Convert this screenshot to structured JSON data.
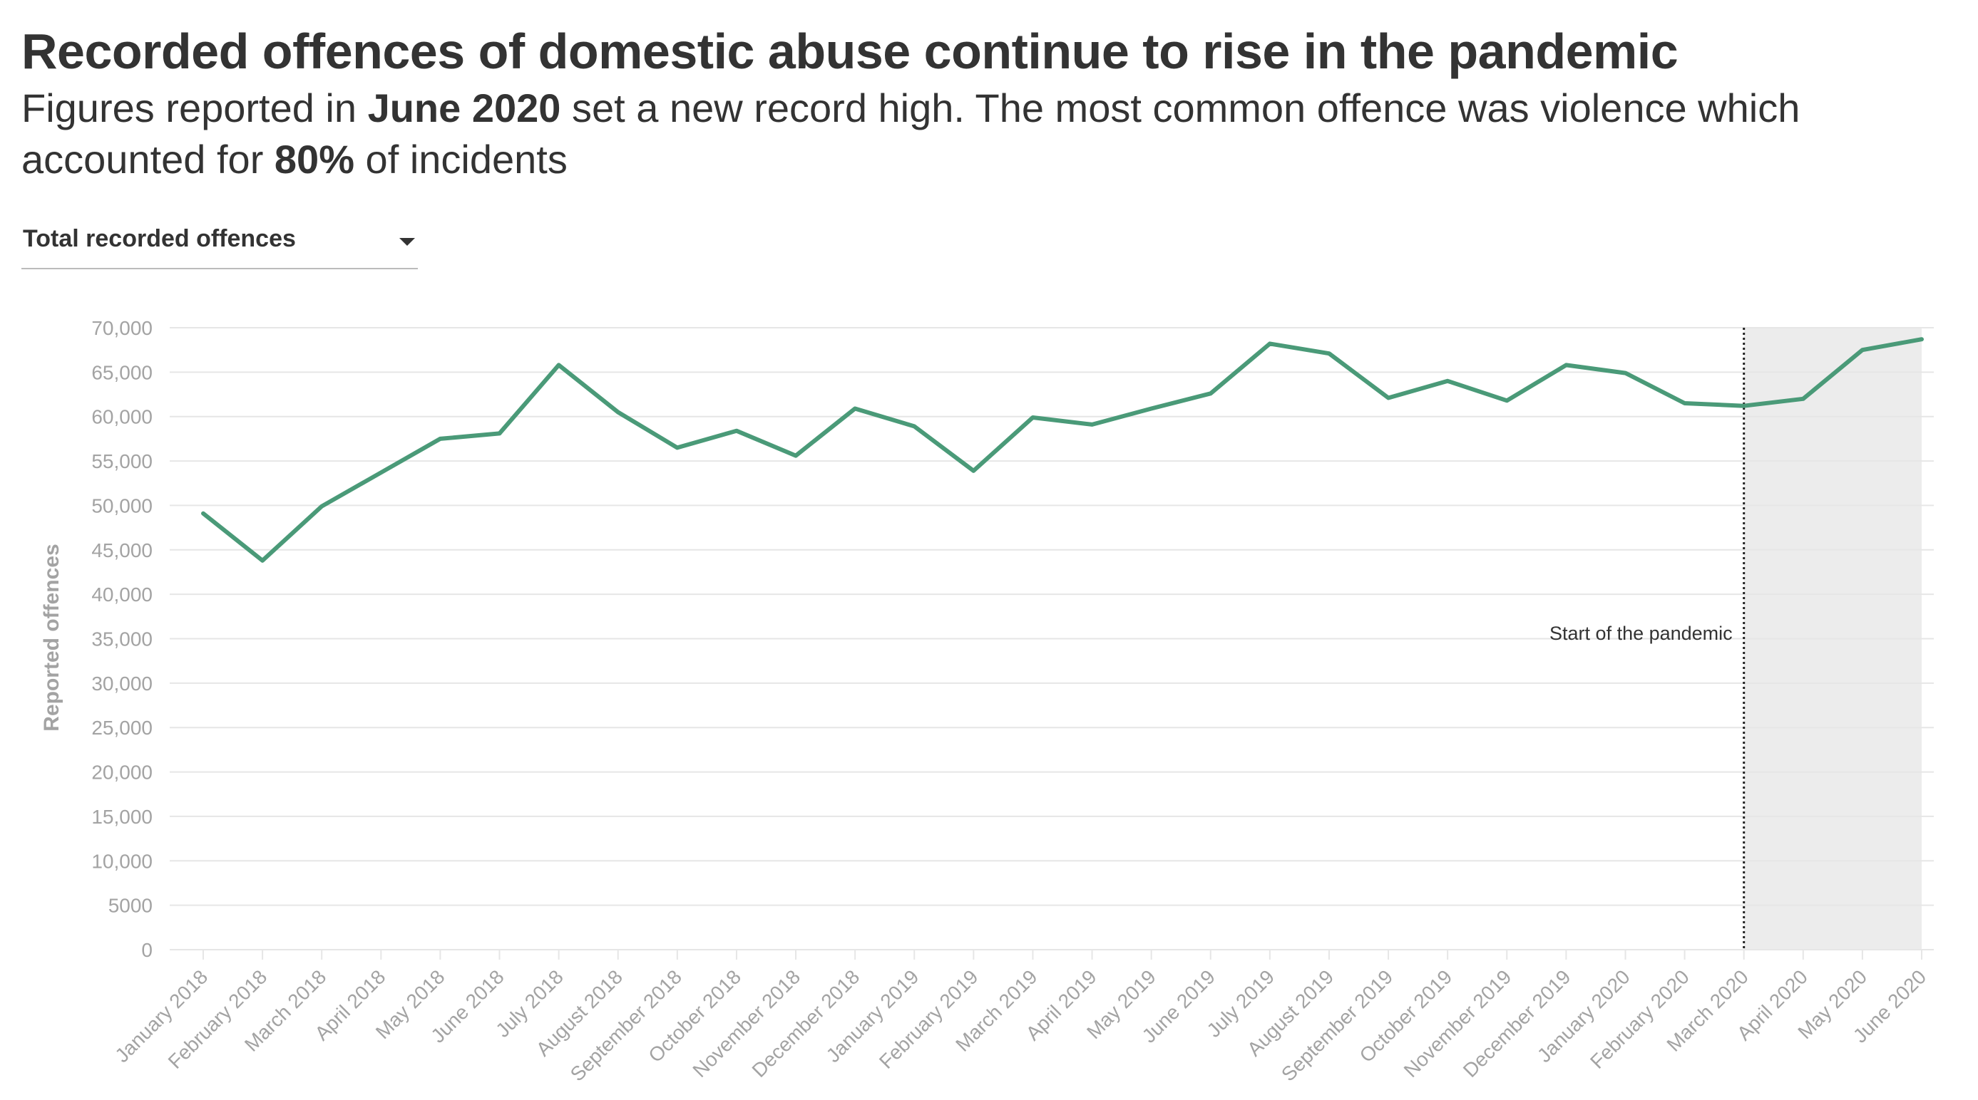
{
  "header": {
    "title": "Recorded offences of domestic abuse continue to rise in the pandemic",
    "subtitle_parts": [
      {
        "text": "Figures reported in ",
        "bold": false
      },
      {
        "text": "June 2020",
        "bold": true
      },
      {
        "text": " set a new record high. The most common offence was violence which accounted for ",
        "bold": false
      },
      {
        "text": "80%",
        "bold": true
      },
      {
        "text": " of incidents",
        "bold": false
      }
    ]
  },
  "dropdown": {
    "selected": "Total recorded offences",
    "icon": "caret-down-icon"
  },
  "colors": {
    "line": "#4a9a78",
    "grid": "#e6e6e6",
    "axis_text": "#a3a3a3",
    "shade": "#ececec",
    "annotation_line": "#222222"
  },
  "chart_data": {
    "type": "line",
    "title": "",
    "xlabel": "",
    "ylabel": "Reported offences",
    "ylim": [
      0,
      70000
    ],
    "yticks": [
      0,
      5000,
      10000,
      15000,
      20000,
      25000,
      30000,
      35000,
      40000,
      45000,
      50000,
      55000,
      60000,
      65000,
      70000
    ],
    "ytick_labels": [
      "0",
      "5000",
      "10,000",
      "15,000",
      "20,000",
      "25,000",
      "30,000",
      "35,000",
      "40,000",
      "45,000",
      "50,000",
      "55,000",
      "60,000",
      "65,000",
      "70,000"
    ],
    "grid": true,
    "categories": [
      "January 2018",
      "February 2018",
      "March 2018",
      "April 2018",
      "May 2018",
      "June 2018",
      "July 2018",
      "August 2018",
      "September 2018",
      "October 2018",
      "November 2018",
      "December 2018",
      "January 2019",
      "February 2019",
      "March 2019",
      "April 2019",
      "May 2019",
      "June 2019",
      "July 2019",
      "August 2019",
      "September 2019",
      "October 2019",
      "November 2019",
      "December 2019",
      "January 2020",
      "February 2020",
      "March 2020",
      "April 2020",
      "May 2020",
      "June 2020"
    ],
    "series": [
      {
        "values": [
          49100,
          43800,
          49900,
          53700,
          57500,
          58100,
          65800,
          60500,
          56500,
          58400,
          55600,
          60900,
          58900,
          53900,
          59900,
          59100,
          60900,
          62600,
          68200,
          67100,
          62100,
          64000,
          61800,
          65800,
          64900,
          61500,
          61200,
          62000,
          67500,
          68700
        ]
      }
    ],
    "annotation": {
      "label": "Start of the pandemic",
      "at": "March 2020",
      "shaded_from": "March 2020",
      "shaded_to": "June 2020"
    }
  }
}
